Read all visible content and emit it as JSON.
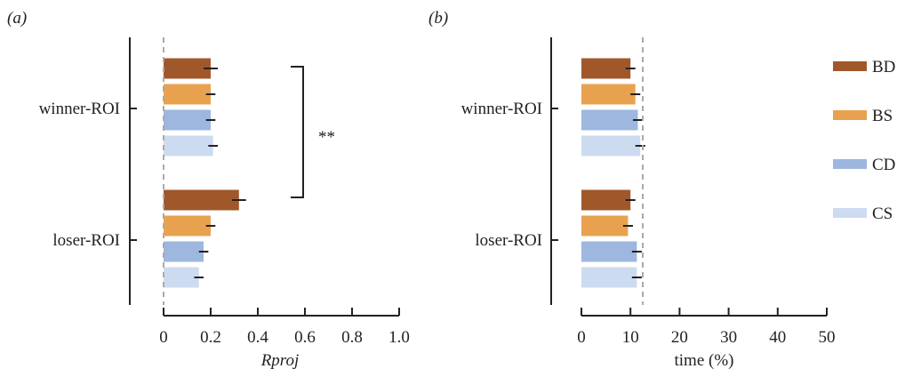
{
  "chart_data": [
    {
      "panel_label": "(a)",
      "type": "bar",
      "orientation": "horizontal",
      "xlabel": "Rproj",
      "xlim": [
        0,
        1.0
      ],
      "xticks": [
        "0",
        "0.2",
        "0.4",
        "0.6",
        "0.8",
        "1.0"
      ],
      "xtick_values": [
        0,
        0.2,
        0.4,
        0.6,
        0.8,
        1.0
      ],
      "reference_line": 0,
      "categories": [
        "winner-ROI",
        "loser-ROI"
      ],
      "series": [
        {
          "name": "BD",
          "values": [
            0.2,
            0.32
          ],
          "errors": [
            0.03,
            0.03
          ]
        },
        {
          "name": "BS",
          "values": [
            0.2,
            0.2
          ],
          "errors": [
            0.02,
            0.02
          ]
        },
        {
          "name": "CD",
          "values": [
            0.2,
            0.17
          ],
          "errors": [
            0.02,
            0.02
          ]
        },
        {
          "name": "CS",
          "values": [
            0.21,
            0.15
          ],
          "errors": [
            0.02,
            0.02
          ]
        }
      ],
      "significance": "**"
    },
    {
      "panel_label": "(b)",
      "type": "bar",
      "orientation": "horizontal",
      "xlabel": "time (%)",
      "xlim": [
        0,
        50
      ],
      "xticks": [
        "0",
        "10",
        "20",
        "30",
        "40",
        "50"
      ],
      "xtick_values": [
        0,
        10,
        20,
        30,
        40,
        50
      ],
      "reference_line": 12.5,
      "categories": [
        "winner-ROI",
        "loser-ROI"
      ],
      "series": [
        {
          "name": "BD",
          "values": [
            10.0,
            10.0
          ],
          "errors": [
            1.0,
            1.0
          ]
        },
        {
          "name": "BS",
          "values": [
            11.0,
            9.5
          ],
          "errors": [
            1.0,
            1.0
          ]
        },
        {
          "name": "CD",
          "values": [
            11.5,
            11.3
          ],
          "errors": [
            1.0,
            1.0
          ]
        },
        {
          "name": "CS",
          "values": [
            12.0,
            11.3
          ],
          "errors": [
            1.0,
            1.0
          ]
        }
      ]
    }
  ],
  "legend": {
    "placement": "right",
    "items": [
      {
        "label": "BD",
        "color": "#a0582a"
      },
      {
        "label": "BS",
        "color": "#e8a24f"
      },
      {
        "label": "CD",
        "color": "#9db7df"
      },
      {
        "label": "CS",
        "color": "#cddbf1"
      }
    ]
  },
  "colors": {
    "BD": "#a0582a",
    "BS": "#e8a24f",
    "CD": "#9db7df",
    "CS": "#cddbf1",
    "axis": "#222222",
    "reference_line": "#aaaaaa",
    "error_bar": "#222222"
  }
}
